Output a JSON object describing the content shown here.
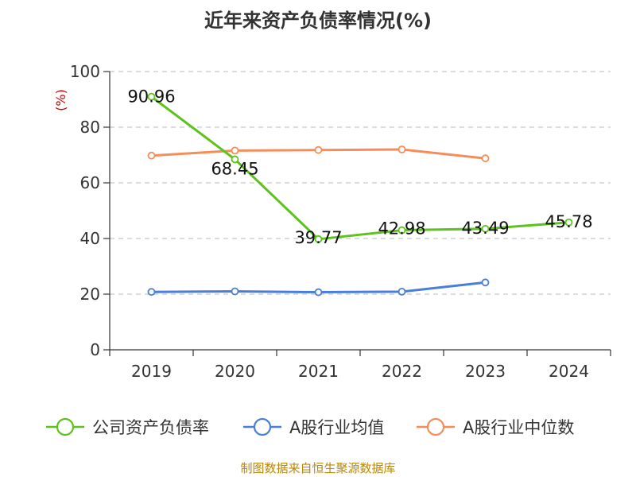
{
  "chart_data": {
    "type": "line",
    "title": "近年来资产负债率情况(%)",
    "ylabel": "(%)",
    "xlabel": "",
    "categories": [
      "2019",
      "2020",
      "2021",
      "2022",
      "2023",
      "2024"
    ],
    "ylim": [
      0,
      100
    ],
    "yticks": [
      "0",
      "20",
      "40",
      "60",
      "80",
      "100"
    ],
    "grid": true,
    "legend_position": "bottom",
    "series": [
      {
        "name": "公司资产负债率",
        "color": "#5cc21c",
        "values": [
          90.96,
          68.45,
          39.77,
          42.98,
          43.49,
          45.78
        ],
        "labels": [
          "90.96",
          "68.45",
          "39.77",
          "42.98",
          "43.49",
          "45.78"
        ]
      },
      {
        "name": "A股行业均值",
        "color": "#4a7fd9",
        "values": [
          20.8,
          21.0,
          20.7,
          20.9,
          24.2,
          null
        ]
      },
      {
        "name": "A股行业中位数",
        "color": "#f58d5a",
        "values": [
          69.8,
          71.6,
          71.8,
          72.0,
          68.8,
          null
        ]
      }
    ]
  },
  "source": "制图数据来自恒生聚源数据库"
}
